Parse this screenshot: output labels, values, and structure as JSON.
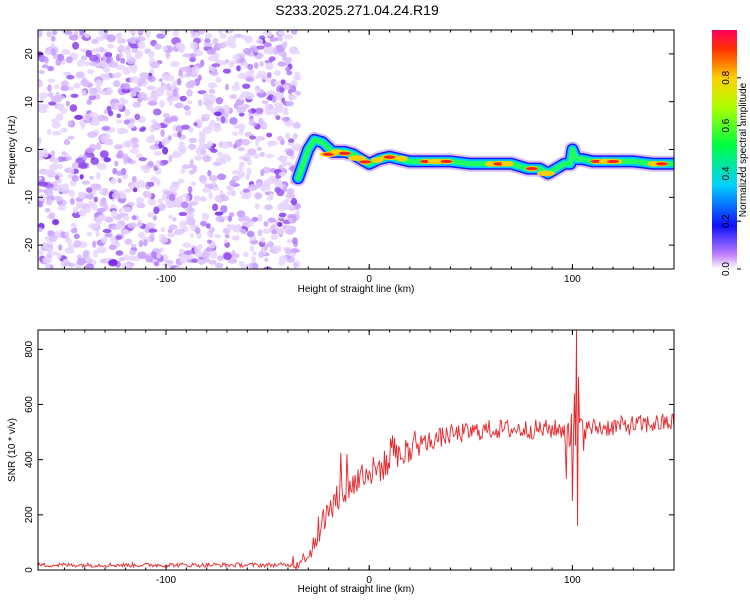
{
  "title": "S233.2025.271.04.24.R19",
  "colors": {
    "background_noise": "#8a2be2",
    "snr_line": "#e8262b",
    "axis": "#000000"
  },
  "chart_data": [
    {
      "type": "heatmap",
      "title": "S233.2025.271.04.24.R19",
      "xlabel": "Height of straight line (km)",
      "ylabel": "Frequency (Hz)",
      "xlim": [
        -163,
        150
      ],
      "ylim": [
        -25,
        25
      ],
      "x_ticks": [
        -100,
        0,
        100
      ],
      "y_ticks": [
        -20,
        -10,
        0,
        10,
        20
      ],
      "noise_region_x": [
        -163,
        -35
      ],
      "ridge": {
        "x": [
          -35,
          -30,
          -27,
          -23,
          -18,
          -12,
          -8,
          -4,
          0,
          5,
          10,
          15,
          20,
          30,
          40,
          50,
          60,
          70,
          78,
          84,
          88,
          92,
          96,
          99,
          100,
          102,
          105,
          110,
          120,
          130,
          140,
          150
        ],
        "y": [
          -6,
          0,
          2,
          1.5,
          -0.5,
          -0.5,
          -1,
          -2,
          -3,
          -2,
          -1.5,
          -2,
          -2.5,
          -2.5,
          -2.5,
          -3,
          -3,
          -3,
          -4,
          -4,
          -5,
          -4,
          -3,
          -3,
          0,
          -2,
          -2,
          -2.5,
          -2.5,
          -2.5,
          -3,
          -3
        ]
      },
      "colorbar": {
        "label": "Normalized spectral amplitude",
        "ticks": [
          "0.0",
          "0.2",
          "0.4",
          "0.6",
          "0.8"
        ],
        "range": [
          0,
          1
        ]
      }
    },
    {
      "type": "line",
      "xlabel": "Height of straight line (km)",
      "ylabel": "SNR (10 * v/v)",
      "xlim": [
        -163,
        150
      ],
      "ylim": [
        0,
        870
      ],
      "x_ticks": [
        -100,
        0,
        100
      ],
      "y_ticks": [
        0,
        200,
        400,
        600,
        800
      ],
      "series": [
        {
          "name": "SNR",
          "envelope_x": [
            -163,
            -40,
            -35,
            -30,
            -25,
            -20,
            -15,
            -10,
            -5,
            0,
            10,
            20,
            30,
            40,
            50,
            60,
            70,
            80,
            90,
            95,
            100,
            103,
            106,
            110,
            120,
            130,
            140,
            150
          ],
          "envelope_y": [
            18,
            18,
            22,
            60,
            140,
            210,
            260,
            300,
            330,
            350,
            390,
            430,
            470,
            490,
            500,
            510,
            510,
            510,
            510,
            510,
            500,
            520,
            510,
            515,
            520,
            525,
            530,
            535
          ],
          "spikes": [
            {
              "x": -14,
              "y": 425
            },
            {
              "x": -11,
              "y": 420
            },
            {
              "x": 97,
              "y": 330
            },
            {
              "x": 101,
              "y": 640
            },
            {
              "x": 102,
              "y": 870
            },
            {
              "x": 102.5,
              "y": 160
            },
            {
              "x": 103,
              "y": 700
            },
            {
              "x": 100,
              "y": 250
            }
          ]
        }
      ]
    }
  ]
}
